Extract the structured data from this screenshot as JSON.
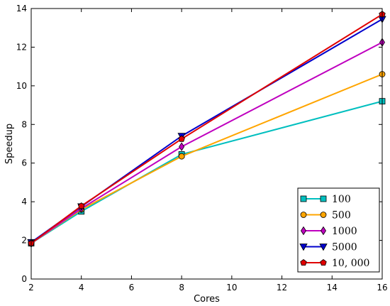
{
  "chart_data": {
    "type": "line",
    "xlabel": "Cores",
    "ylabel": "Speedup",
    "xlim": [
      2,
      16
    ],
    "ylim": [
      0,
      14
    ],
    "xticks": [
      "2",
      "4",
      "6",
      "8",
      "10",
      "12",
      "14",
      "16"
    ],
    "yticks": [
      "0",
      "2",
      "4",
      "6",
      "8",
      "10",
      "12",
      "14"
    ],
    "grid": false,
    "legend_position": "lower-right",
    "x": [
      2,
      4,
      8,
      16
    ],
    "series": [
      {
        "name": "100",
        "color": "#00bfbf",
        "marker": "square",
        "values": [
          1.85,
          3.5,
          6.45,
          9.2
        ]
      },
      {
        "name": "500",
        "color": "#ffa500",
        "marker": "circle",
        "values": [
          1.85,
          3.6,
          6.35,
          10.6
        ]
      },
      {
        "name": "1000",
        "color": "#bf00bf",
        "marker": "diamond",
        "values": [
          1.85,
          3.65,
          6.85,
          12.25
        ]
      },
      {
        "name": "5000",
        "color": "#0000cc",
        "marker": "triangle-down",
        "values": [
          1.9,
          3.75,
          7.4,
          13.45
        ]
      },
      {
        "name": "10, 000",
        "color": "#e00000",
        "marker": "pentagon",
        "values": [
          1.85,
          3.78,
          7.25,
          13.7
        ]
      }
    ]
  }
}
